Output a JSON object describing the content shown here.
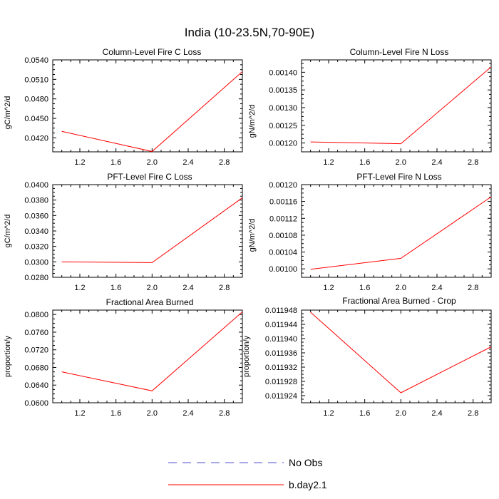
{
  "title": "India (10-23.5N,70-90E)",
  "legend": [
    {
      "label": "No Obs",
      "color": "#5050d0",
      "dashed": true
    },
    {
      "label": "b.day2.1",
      "color": "#ff0000",
      "dashed": false
    }
  ],
  "chart_data": [
    {
      "type": "line",
      "title": "Column-Level Fire C Loss",
      "ylabel": "gC/m^2/d",
      "xlim": [
        0.9,
        3.0
      ],
      "ylim": [
        0.03985,
        0.054
      ],
      "xticks": [
        1.2,
        1.6,
        2.0,
        2.4,
        2.8
      ],
      "xtick_labels": [
        "1.2",
        "1.6",
        "2.0",
        "2.4",
        "2.8"
      ],
      "yticks": [
        0.042,
        0.045,
        0.048,
        0.051,
        0.054
      ],
      "ytick_labels": [
        "0.0420",
        "0.0450",
        "0.0480",
        "0.0510",
        "0.0540"
      ],
      "series": [
        {
          "name": "b.day2.1",
          "color": "#ff0000",
          "x": [
            1.0,
            2.0,
            3.0
          ],
          "y": [
            0.043,
            0.0399,
            0.0522
          ]
        }
      ]
    },
    {
      "type": "line",
      "title": "Column-Level Fire N Loss",
      "ylabel": "gN/m^2/d",
      "xlim": [
        0.9,
        3.0
      ],
      "ylim": [
        0.001175,
        0.001435
      ],
      "xticks": [
        1.2,
        1.6,
        2.0,
        2.4,
        2.8
      ],
      "xtick_labels": [
        "1.2",
        "1.6",
        "2.0",
        "2.4",
        "2.8"
      ],
      "yticks": [
        0.0012,
        0.00125,
        0.0013,
        0.00135,
        0.0014
      ],
      "ytick_labels": [
        "0.00120",
        "0.00125",
        "0.00130",
        "0.00135",
        "0.00140"
      ],
      "series": [
        {
          "name": "b.day2.1",
          "color": "#ff0000",
          "x": [
            1.0,
            2.0,
            3.0
          ],
          "y": [
            0.001203,
            0.001198,
            0.001415
          ]
        }
      ]
    },
    {
      "type": "line",
      "title": "PFT-Level Fire C Loss",
      "ylabel": "gC/m^2/d",
      "xlim": [
        0.9,
        3.0
      ],
      "ylim": [
        0.028,
        0.04
      ],
      "xticks": [
        1.2,
        1.6,
        2.0,
        2.4,
        2.8
      ],
      "xtick_labels": [
        "1.2",
        "1.6",
        "2.0",
        "2.4",
        "2.8"
      ],
      "yticks": [
        0.028,
        0.03,
        0.032,
        0.034,
        0.036,
        0.038,
        0.04
      ],
      "ytick_labels": [
        "0.0280",
        "0.0300",
        "0.0320",
        "0.0340",
        "0.0360",
        "0.0380",
        "0.0400"
      ],
      "series": [
        {
          "name": "b.day2.1",
          "color": "#ff0000",
          "x": [
            1.0,
            2.0,
            3.0
          ],
          "y": [
            0.03,
            0.0299,
            0.0383
          ]
        }
      ]
    },
    {
      "type": "line",
      "title": "PFT-Level Fire N Loss",
      "ylabel": "gN/m^2/d",
      "xlim": [
        0.9,
        3.0
      ],
      "ylim": [
        0.00098,
        0.0012
      ],
      "xticks": [
        1.2,
        1.6,
        2.0,
        2.4,
        2.8
      ],
      "xtick_labels": [
        "1.2",
        "1.6",
        "2.0",
        "2.4",
        "2.8"
      ],
      "yticks": [
        0.001,
        0.00104,
        0.00108,
        0.00112,
        0.00116,
        0.0012
      ],
      "ytick_labels": [
        "0.00100",
        "0.00104",
        "0.00108",
        "0.00112",
        "0.00116",
        "0.00120"
      ],
      "series": [
        {
          "name": "b.day2.1",
          "color": "#ff0000",
          "x": [
            1.0,
            2.0,
            3.0
          ],
          "y": [
            0.000999,
            0.001025,
            0.001171
          ]
        }
      ]
    },
    {
      "type": "line",
      "title": "Fractional Area Burned",
      "ylabel": "proportion/y",
      "xlim": [
        0.9,
        3.0
      ],
      "ylim": [
        0.06,
        0.081
      ],
      "xticks": [
        1.2,
        1.6,
        2.0,
        2.4,
        2.8
      ],
      "xtick_labels": [
        "1.2",
        "1.6",
        "2.0",
        "2.4",
        "2.8"
      ],
      "yticks": [
        0.06,
        0.064,
        0.068,
        0.072,
        0.076,
        0.08
      ],
      "ytick_labels": [
        "0.0600",
        "0.0640",
        "0.0680",
        "0.0720",
        "0.0760",
        "0.0800"
      ],
      "series": [
        {
          "name": "b.day2.1",
          "color": "#ff0000",
          "x": [
            1.0,
            2.0,
            3.0
          ],
          "y": [
            0.067,
            0.0627,
            0.0806
          ]
        }
      ]
    },
    {
      "type": "line",
      "title": "Fractional Area Burned - Crop",
      "ylabel": "proportion/y",
      "xlim": [
        0.9,
        3.0
      ],
      "ylim": [
        0.011922,
        0.011948
      ],
      "xticks": [
        1.2,
        1.6,
        2.0,
        2.4,
        2.8
      ],
      "xtick_labels": [
        "1.2",
        "1.6",
        "2.0",
        "2.4",
        "2.8"
      ],
      "yticks": [
        0.011924,
        0.011928,
        0.011932,
        0.011936,
        0.01194,
        0.011944,
        0.011948
      ],
      "ytick_labels": [
        "0.011924",
        "0.011928",
        "0.011932",
        "0.011936",
        "0.011940",
        "0.011944",
        "0.011948"
      ],
      "series": [
        {
          "name": "b.day2.1",
          "color": "#ff0000",
          "x": [
            1.0,
            2.0,
            3.0
          ],
          "y": [
            0.0119474,
            0.0119248,
            0.0119377
          ]
        }
      ]
    }
  ]
}
